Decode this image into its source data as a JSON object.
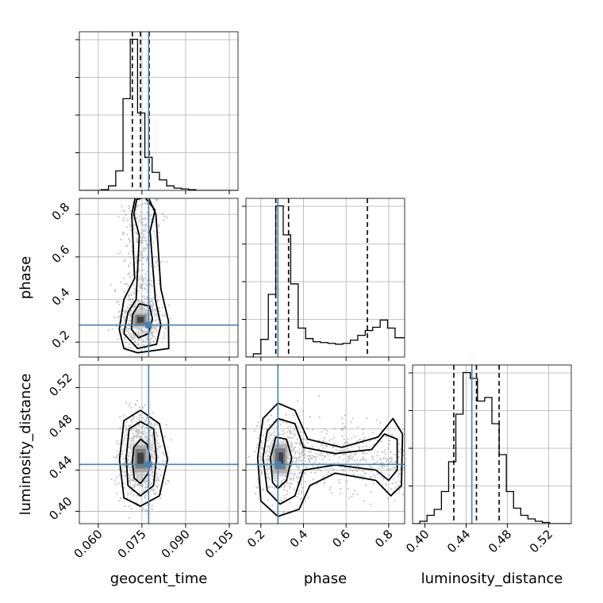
{
  "chart_data": {
    "type": "corner",
    "parameters": [
      "geocent_time",
      "phase",
      "luminosity_distance"
    ],
    "truth_color": "#4682b4",
    "grid": true,
    "truths": {
      "geocent_time": 0.0773,
      "phase": 0.28,
      "luminosity_distance": 0.4455
    },
    "quantiles": {
      "geocent_time": [
        0.0717,
        0.0745,
        0.0775
      ],
      "phase": [
        0.27,
        0.33,
        0.7
      ],
      "luminosity_distance": [
        0.428,
        0.45,
        0.472
      ]
    },
    "axes": {
      "geocent_time": {
        "label": "geocent_time",
        "range": [
          0.0535,
          0.108
        ],
        "ticks": [
          0.06,
          0.075,
          0.09,
          0.105
        ],
        "tick_labels": [
          "0.060",
          "0.075",
          "0.090",
          "0.105"
        ]
      },
      "phase": {
        "label": "phase",
        "range": [
          0.13,
          0.875
        ],
        "ticks": [
          0.2,
          0.4,
          0.6,
          0.8
        ],
        "tick_labels": [
          "0.2",
          "0.4",
          "0.6",
          "0.8"
        ]
      },
      "luminosity_distance": {
        "label": "luminosity_distance",
        "range": [
          0.388,
          0.542
        ],
        "ticks": [
          0.4,
          0.44,
          0.48,
          0.52
        ],
        "tick_labels": [
          "0.40",
          "0.44",
          "0.48",
          "0.52"
        ]
      }
    },
    "histograms": {
      "geocent_time": {
        "edges": [
          0.0535,
          0.056,
          0.0585,
          0.061,
          0.0635,
          0.066,
          0.0685,
          0.071,
          0.0735,
          0.076,
          0.0785,
          0.081,
          0.0835,
          0.086,
          0.0885,
          0.091,
          0.0935,
          0.096,
          0.0985,
          0.101,
          0.1035,
          0.106,
          0.108
        ],
        "counts": [
          0,
          0,
          0,
          1,
          6,
          26,
          122,
          201,
          103,
          44,
          24,
          14,
          6,
          3,
          2,
          1,
          0,
          0,
          0,
          0,
          0,
          0
        ]
      },
      "phase": {
        "edges": [
          0.13,
          0.165,
          0.2,
          0.235,
          0.27,
          0.305,
          0.34,
          0.375,
          0.41,
          0.445,
          0.48,
          0.515,
          0.55,
          0.585,
          0.62,
          0.655,
          0.69,
          0.725,
          0.76,
          0.795,
          0.83,
          0.865,
          0.875
        ],
        "counts": [
          0,
          4,
          22,
          78,
          188,
          152,
          91,
          36,
          23,
          19,
          18,
          17,
          16,
          17,
          21,
          27,
          33,
          37,
          46,
          36,
          24,
          24
        ]
      },
      "luminosity_distance": {
        "edges": [
          0.388,
          0.395,
          0.402,
          0.409,
          0.416,
          0.423,
          0.43,
          0.437,
          0.444,
          0.451,
          0.458,
          0.465,
          0.472,
          0.479,
          0.486,
          0.493,
          0.5,
          0.507,
          0.514,
          0.521,
          0.528,
          0.535,
          0.542
        ],
        "counts": [
          0,
          2,
          7,
          12,
          27,
          52,
          92,
          127,
          122,
          103,
          106,
          84,
          58,
          27,
          13,
          7,
          4,
          2,
          1,
          0,
          0,
          0
        ]
      }
    },
    "contours": {
      "geocent_time_vs_phase": [
        [
          [
            0.0738,
            0.22
          ],
          [
            0.0772,
            0.24
          ],
          [
            0.0786,
            0.31
          ],
          [
            0.0776,
            0.37
          ],
          [
            0.0741,
            0.38
          ],
          [
            0.0718,
            0.33
          ],
          [
            0.0714,
            0.26
          ]
        ],
        [
          [
            0.0735,
            0.17
          ],
          [
            0.08,
            0.19
          ],
          [
            0.0815,
            0.28
          ],
          [
            0.0796,
            0.4
          ],
          [
            0.0778,
            0.72
          ],
          [
            0.0795,
            0.82
          ],
          [
            0.076,
            0.88
          ],
          [
            0.0732,
            0.87
          ],
          [
            0.0722,
            0.8
          ],
          [
            0.0741,
            0.7
          ],
          [
            0.073,
            0.4
          ],
          [
            0.0702,
            0.34
          ],
          [
            0.0688,
            0.24
          ]
        ],
        [
          [
            0.0735,
            0.15
          ],
          [
            0.0842,
            0.17
          ],
          [
            0.0841,
            0.3
          ],
          [
            0.0815,
            0.45
          ],
          [
            0.0798,
            0.8
          ],
          [
            0.0772,
            0.88
          ],
          [
            0.0727,
            0.88
          ],
          [
            0.0715,
            0.8
          ],
          [
            0.0725,
            0.5
          ],
          [
            0.0688,
            0.4
          ],
          [
            0.0672,
            0.26
          ],
          [
            0.0688,
            0.17
          ]
        ]
      ],
      "geocent_time_vs_luminosity_distance": [
        [
          [
            0.0745,
            0.427
          ],
          [
            0.0772,
            0.437
          ],
          [
            0.0778,
            0.452
          ],
          [
            0.0768,
            0.465
          ],
          [
            0.0745,
            0.47
          ],
          [
            0.0722,
            0.462
          ],
          [
            0.0717,
            0.447
          ],
          [
            0.0724,
            0.432
          ]
        ],
        [
          [
            0.0745,
            0.415
          ],
          [
            0.079,
            0.425
          ],
          [
            0.08,
            0.452
          ],
          [
            0.079,
            0.48
          ],
          [
            0.0745,
            0.487
          ],
          [
            0.0706,
            0.48
          ],
          [
            0.0696,
            0.452
          ],
          [
            0.0702,
            0.425
          ]
        ],
        [
          [
            0.0745,
            0.405
          ],
          [
            0.081,
            0.415
          ],
          [
            0.0838,
            0.45
          ],
          [
            0.081,
            0.485
          ],
          [
            0.0745,
            0.498
          ],
          [
            0.0688,
            0.488
          ],
          [
            0.0673,
            0.45
          ],
          [
            0.0688,
            0.413
          ]
        ]
      ],
      "phase_vs_luminosity_distance": [
        [
          [
            0.28,
            0.422
          ],
          [
            0.32,
            0.43
          ],
          [
            0.345,
            0.452
          ],
          [
            0.32,
            0.47
          ],
          [
            0.27,
            0.472
          ],
          [
            0.245,
            0.452
          ],
          [
            0.255,
            0.428
          ]
        ],
        [
          [
            0.29,
            0.407
          ],
          [
            0.36,
            0.415
          ],
          [
            0.4,
            0.44
          ],
          [
            0.55,
            0.445
          ],
          [
            0.74,
            0.44
          ],
          [
            0.8,
            0.43
          ],
          [
            0.84,
            0.44
          ],
          [
            0.84,
            0.47
          ],
          [
            0.78,
            0.475
          ],
          [
            0.72,
            0.46
          ],
          [
            0.55,
            0.456
          ],
          [
            0.4,
            0.462
          ],
          [
            0.36,
            0.485
          ],
          [
            0.28,
            0.49
          ],
          [
            0.23,
            0.478
          ],
          [
            0.21,
            0.452
          ],
          [
            0.23,
            0.42
          ]
        ],
        [
          [
            0.28,
            0.395
          ],
          [
            0.38,
            0.402
          ],
          [
            0.43,
            0.425
          ],
          [
            0.55,
            0.437
          ],
          [
            0.74,
            0.43
          ],
          [
            0.81,
            0.415
          ],
          [
            0.86,
            0.425
          ],
          [
            0.865,
            0.475
          ],
          [
            0.82,
            0.49
          ],
          [
            0.75,
            0.472
          ],
          [
            0.58,
            0.462
          ],
          [
            0.42,
            0.47
          ],
          [
            0.36,
            0.498
          ],
          [
            0.28,
            0.505
          ],
          [
            0.21,
            0.49
          ],
          [
            0.185,
            0.452
          ],
          [
            0.2,
            0.41
          ]
        ]
      ]
    }
  }
}
